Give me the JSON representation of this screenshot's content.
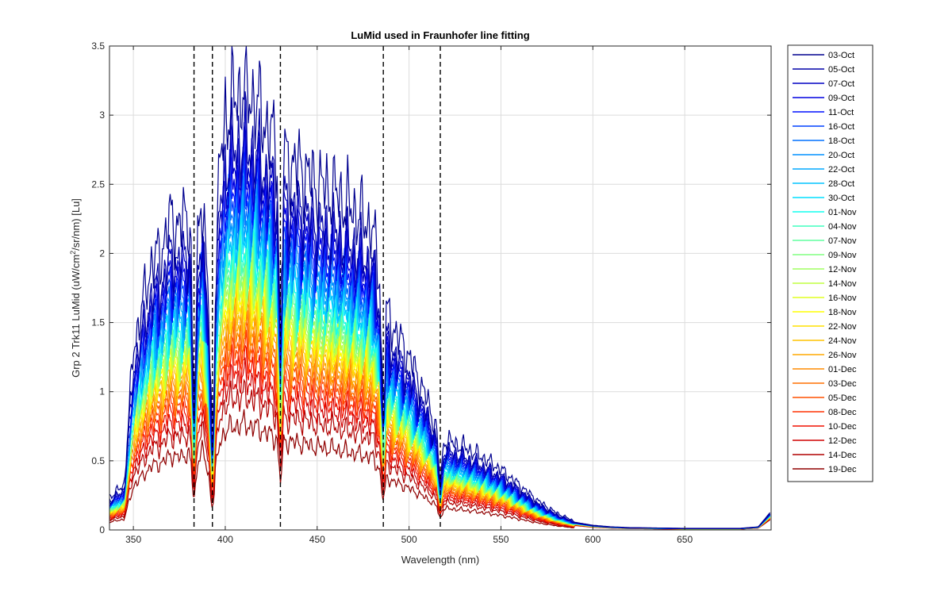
{
  "chart_data": {
    "type": "line",
    "title": "LuMid used in Fraunhofer line fitting",
    "xlabel": "Wavelength (nm)",
    "ylabel_parts": [
      "Grp 2 Trk11 LuMid (uW/cm",
      "2",
      "/sr/nm) [Lu]"
    ],
    "xlim": [
      337,
      697
    ],
    "ylim": [
      0,
      3.5
    ],
    "xticks": [
      350,
      400,
      450,
      500,
      550,
      600,
      650
    ],
    "yticks": [
      0,
      0.5,
      1,
      1.5,
      2,
      2.5,
      3,
      3.5
    ],
    "xtick_labels": [
      "350",
      "400",
      "450",
      "500",
      "550",
      "600",
      "650"
    ],
    "ytick_labels": [
      "0",
      "0.5",
      "1",
      "1.5",
      "2",
      "2.5",
      "3",
      "3.5"
    ],
    "grid": true,
    "legend_position": "outside-right",
    "fraunhofer_lines_nm": [
      383,
      393,
      430,
      486,
      517
    ],
    "dashed_line_color": "#000000",
    "envelope": {
      "x": [
        337,
        345,
        350,
        355,
        360,
        365,
        370,
        375,
        380,
        383,
        387,
        393,
        397,
        400,
        405,
        410,
        415,
        420,
        430,
        440,
        450,
        460,
        470,
        480,
        486,
        490,
        500,
        510,
        517,
        520,
        530,
        540,
        550,
        560,
        570,
        580,
        590,
        600,
        610,
        620,
        650,
        680,
        690,
        697
      ],
      "y": [
        0.19,
        0.26,
        1.05,
        1.3,
        1.55,
        1.6,
        1.8,
        1.75,
        1.85,
        1.3,
        2.0,
        0.95,
        2.1,
        2.4,
        2.5,
        2.55,
        2.5,
        2.4,
        2.15,
        2.1,
        2.0,
        1.95,
        1.85,
        1.75,
        1.3,
        1.2,
        1.0,
        0.75,
        0.5,
        0.52,
        0.48,
        0.42,
        0.35,
        0.26,
        0.17,
        0.1,
        0.05,
        0.03,
        0.02,
        0.015,
        0.01,
        0.01,
        0.02,
        0.12
      ]
    },
    "series": [
      {
        "name": "03-Oct",
        "color": "#00008F",
        "scale": 1.25
      },
      {
        "name": "05-Oct",
        "color": "#0000A8",
        "scale": 1.1
      },
      {
        "name": "07-Oct",
        "color": "#0000C4",
        "scale": 1.06
      },
      {
        "name": "09-Oct",
        "color": "#0000E0",
        "scale": 1.02
      },
      {
        "name": "11-Oct",
        "color": "#0010FF",
        "scale": 0.99
      },
      {
        "name": "16-Oct",
        "color": "#0040FF",
        "scale": 0.96
      },
      {
        "name": "18-Oct",
        "color": "#0070FF",
        "scale": 0.93
      },
      {
        "name": "20-Oct",
        "color": "#0090FF",
        "scale": 0.9
      },
      {
        "name": "22-Oct",
        "color": "#00A8FF",
        "scale": 0.88
      },
      {
        "name": "28-Oct",
        "color": "#00C4FF",
        "scale": 0.85
      },
      {
        "name": "30-Oct",
        "color": "#00DFFF",
        "scale": 0.84
      },
      {
        "name": "01-Nov",
        "color": "#10FFEF",
        "scale": 0.8
      },
      {
        "name": "04-Nov",
        "color": "#40FFBF",
        "scale": 0.78
      },
      {
        "name": "07-Nov",
        "color": "#60FF9F",
        "scale": 0.76
      },
      {
        "name": "09-Nov",
        "color": "#80FF80",
        "scale": 0.74
      },
      {
        "name": "12-Nov",
        "color": "#A0FF60",
        "scale": 0.72
      },
      {
        "name": "14-Nov",
        "color": "#C0FF40",
        "scale": 0.7
      },
      {
        "name": "16-Nov",
        "color": "#E0FF20",
        "scale": 0.69
      },
      {
        "name": "18-Nov",
        "color": "#FFFF00",
        "scale": 0.67
      },
      {
        "name": "22-Nov",
        "color": "#FFE000",
        "scale": 0.65
      },
      {
        "name": "24-Nov",
        "color": "#FFC400",
        "scale": 0.63
      },
      {
        "name": "26-Nov",
        "color": "#FFA800",
        "scale": 0.6
      },
      {
        "name": "01-Dec",
        "color": "#FF8C00",
        "scale": 0.58
      },
      {
        "name": "03-Dec",
        "color": "#FF7000",
        "scale": 0.55
      },
      {
        "name": "05-Dec",
        "color": "#FF5000",
        "scale": 0.53
      },
      {
        "name": "08-Dec",
        "color": "#FF3000",
        "scale": 0.5
      },
      {
        "name": "10-Dec",
        "color": "#F01000",
        "scale": 0.47
      },
      {
        "name": "12-Dec",
        "color": "#D00000",
        "scale": 0.43
      },
      {
        "name": "14-Dec",
        "color": "#B00000",
        "scale": 0.38
      },
      {
        "name": "19-Dec",
        "color": "#900000",
        "scale": 0.3
      }
    ]
  }
}
